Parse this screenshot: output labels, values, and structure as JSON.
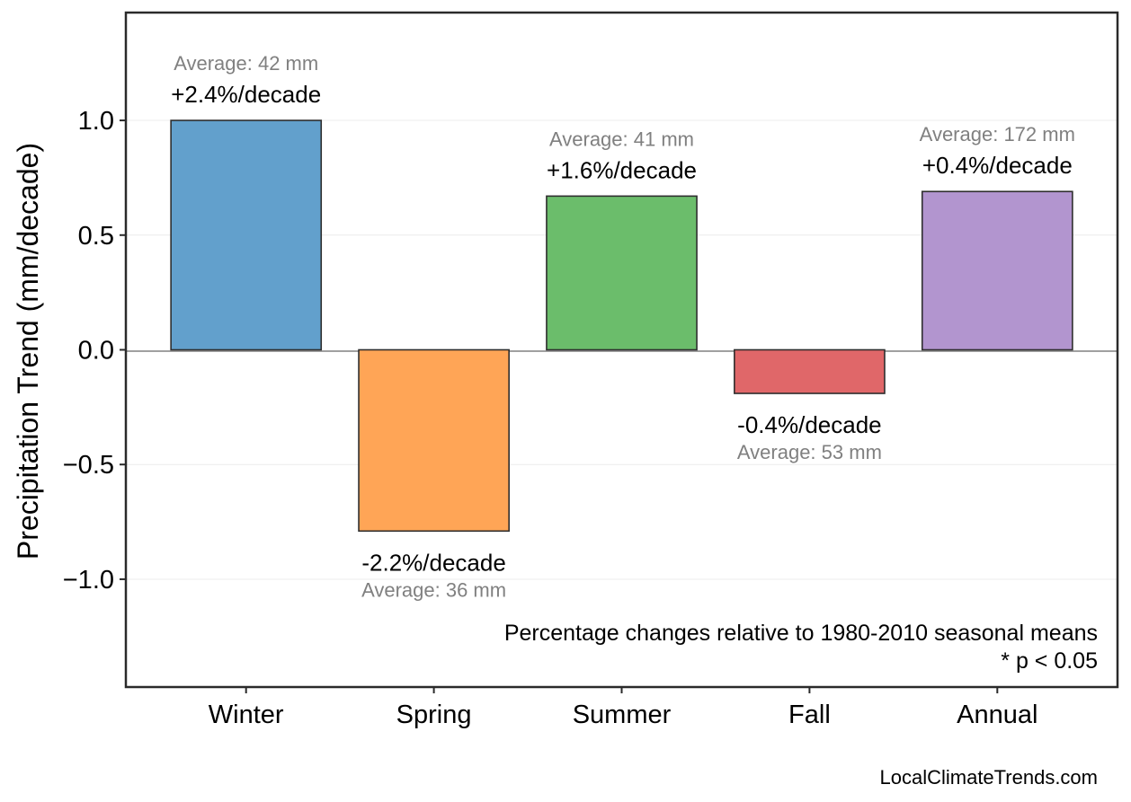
{
  "chart_data": {
    "type": "bar",
    "title": "",
    "xlabel": "",
    "ylabel": "Precipitation Trend (mm/decade)",
    "ylim": [
      -1.47,
      1.47
    ],
    "yticks": [
      1.0,
      0.5,
      0.0,
      -0.5,
      -1.0
    ],
    "ytick_labels": [
      "1.0",
      "0.5",
      "0.0",
      "−0.5",
      "−1.0"
    ],
    "grid": true,
    "categories": [
      "Winter",
      "Spring",
      "Summer",
      "Fall",
      "Annual"
    ],
    "values": [
      1.0,
      -0.79,
      0.67,
      -0.19,
      0.69
    ],
    "colors": [
      "#62a0cc",
      "#ffa556",
      "#6bbd6b",
      "#e06769",
      "#b295cf"
    ],
    "pct_labels": [
      "+2.4%/decade",
      "-2.2%/decade",
      "+1.6%/decade",
      "-0.4%/decade",
      "+0.4%/decade"
    ],
    "avg_labels": [
      "Average: 42 mm",
      "Average: 36 mm",
      "Average: 41 mm",
      "Average: 53 mm",
      "Average: 172 mm"
    ],
    "note_lines": [
      "Percentage changes relative to 1980-2010 seasonal means",
      "* p < 0.05"
    ],
    "source": "LocalClimateTrends.com"
  }
}
